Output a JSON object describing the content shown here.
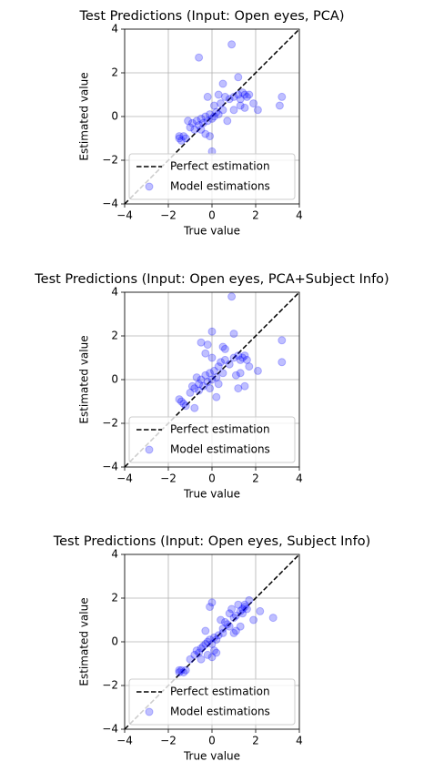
{
  "chart_data": [
    {
      "type": "scatter",
      "title": "Test Predictions (Input: Open eyes, PCA)",
      "xlabel": "True value",
      "ylabel": "Estimated value",
      "xlim": [
        -4,
        4
      ],
      "ylim": [
        -4,
        4
      ],
      "xticks": [
        {
          "value": -4,
          "label": "−4"
        },
        {
          "value": -2,
          "label": "−2"
        },
        0,
        2,
        4
      ],
      "yticks": [
        {
          "value": -4,
          "label": "−4"
        },
        {
          "value": -2,
          "label": "−2"
        },
        0,
        2,
        4
      ],
      "grid": true,
      "legend": "lower left",
      "series": [
        {
          "name": "Perfect estimation",
          "type": "line",
          "color": "#000000",
          "x": [
            -4,
            4
          ],
          "y": [
            -4,
            4
          ]
        },
        {
          "name": "Model estimations",
          "type": "scatter",
          "color": "#0000ff",
          "alpha": 0.25,
          "x": [
            -1.5,
            -1.4,
            -1.3,
            -1.2,
            -1.5,
            -1.0,
            -0.9,
            -0.8,
            -0.7,
            -0.6,
            -0.5,
            -0.4,
            -0.3,
            -0.2,
            -0.1,
            0,
            0.1,
            0.2,
            0.3,
            -0.3,
            -0.1,
            0.1,
            0.4,
            0.5,
            0.6,
            0.8,
            1.0,
            1.2,
            1.3,
            1.4,
            1.5,
            1.6,
            1.3,
            1.5,
            1.7,
            0.9,
            -0.6,
            3.2,
            3.1,
            2.1,
            0,
            1.2,
            0.5,
            -0.2,
            0.7,
            1.0,
            -1.1,
            0.3,
            -0.5,
            1.9
          ],
          "y": [
            -1.0,
            -1.1,
            -0.9,
            -1.0,
            -0.9,
            -0.5,
            -0.3,
            -0.6,
            -0.2,
            -0.4,
            -0.1,
            -0.3,
            0,
            -0.2,
            0.1,
            -0.1,
            0,
            0.2,
            0.1,
            -0.8,
            -0.9,
            0.5,
            0.6,
            0.3,
            0.9,
            0.8,
            0.9,
            1.0,
            0.8,
            1.1,
            1.0,
            0.9,
            0.5,
            0.4,
            1.0,
            3.3,
            2.7,
            0.9,
            0.5,
            0.3,
            -1.6,
            1.8,
            1.5,
            0.9,
            -0.2,
            0.3,
            -0.2,
            1.0,
            -0.6,
            0.6
          ]
        }
      ]
    },
    {
      "type": "scatter",
      "title": "Test Predictions (Input: Open eyes, PCA+Subject Info)",
      "xlabel": "True value",
      "ylabel": "Estimated value",
      "xlim": [
        -4,
        4
      ],
      "ylim": [
        -4,
        4
      ],
      "xticks": [
        {
          "value": -4,
          "label": "−4"
        },
        {
          "value": -2,
          "label": "−2"
        },
        0,
        2,
        4
      ],
      "yticks": [
        {
          "value": -4,
          "label": "−4"
        },
        {
          "value": -2,
          "label": "−2"
        },
        0,
        2,
        4
      ],
      "grid": true,
      "legend": "lower left",
      "series": [
        {
          "name": "Perfect estimation",
          "type": "line",
          "color": "#000000",
          "x": [
            -4,
            4
          ],
          "y": [
            -4,
            4
          ]
        },
        {
          "name": "Model estimations",
          "type": "scatter",
          "color": "#0000ff",
          "alpha": 0.25,
          "x": [
            -1.4,
            -1.3,
            -1.5,
            -1.2,
            -1.0,
            -0.9,
            -0.8,
            -0.7,
            -0.6,
            -0.5,
            -0.4,
            -0.3,
            -0.2,
            -0.1,
            0,
            0.1,
            0.2,
            0.3,
            -0.3,
            0,
            0.4,
            0.5,
            0.6,
            0.8,
            1.0,
            1.2,
            1.3,
            1.4,
            1.5,
            1.6,
            1.3,
            1.5,
            0.9,
            0,
            -0.5,
            1.0,
            3.2,
            3.2,
            2.1,
            -0.2,
            0.6,
            1.2,
            0.2,
            -0.8,
            1.7,
            0.5,
            -0.1,
            1.1,
            0.3,
            -0.6
          ],
          "y": [
            -1.0,
            -1.1,
            -0.9,
            -1.2,
            -0.6,
            -0.3,
            -0.4,
            0.1,
            -0.2,
            0,
            -0.3,
            0.2,
            -0.1,
            0.3,
            0,
            0.4,
            0.1,
            -0.2,
            1.2,
            1.0,
            0.8,
            0.3,
            0.9,
            0.7,
            1.0,
            1.1,
            0.9,
            1.0,
            1.1,
            0.9,
            0.3,
            -0.3,
            3.8,
            2.2,
            1.7,
            2.1,
            1.8,
            0.8,
            0.4,
            1.6,
            1.4,
            -0.4,
            -0.8,
            -1.3,
            0.6,
            1.5,
            -0.4,
            0.2,
            0.6,
            -0.5
          ]
        }
      ]
    },
    {
      "type": "scatter",
      "title": "Test Predictions (Input: Open eyes, Subject Info)",
      "xlabel": "True value",
      "ylabel": "Estimated value",
      "xlim": [
        -4,
        4
      ],
      "ylim": [
        -4,
        4
      ],
      "xticks": [
        {
          "value": -4,
          "label": "−4"
        },
        {
          "value": -2,
          "label": "−2"
        },
        0,
        2,
        4
      ],
      "yticks": [
        {
          "value": -4,
          "label": "−4"
        },
        {
          "value": -2,
          "label": "−2"
        },
        0,
        2,
        4
      ],
      "grid": true,
      "legend": "lower left",
      "series": [
        {
          "name": "Perfect estimation",
          "type": "line",
          "color": "#000000",
          "x": [
            -4,
            4
          ],
          "y": [
            -4,
            4
          ]
        },
        {
          "name": "Model estimations",
          "type": "scatter",
          "color": "#0000ff",
          "alpha": 0.25,
          "x": [
            -1.5,
            -1.4,
            -1.3,
            -1.2,
            -1.5,
            -1.0,
            -0.8,
            -0.7,
            -0.6,
            -0.5,
            -0.4,
            -0.3,
            -0.2,
            -0.1,
            0,
            0.1,
            0.2,
            -0.2,
            0,
            0.1,
            0.3,
            0.5,
            0.6,
            0.8,
            1.0,
            1.1,
            1.3,
            1.4,
            1.5,
            1.6,
            1.4,
            1.5,
            1.2,
            0.9,
            0,
            -0.1,
            2.8,
            2.2,
            1.9,
            1.0,
            0.4,
            0.7,
            -0.3,
            1.3,
            0.2,
            1.7,
            -0.5,
            0.8,
            1.1,
            0.5
          ],
          "y": [
            -1.4,
            -1.3,
            -1.4,
            -1.3,
            -1.3,
            -0.8,
            -0.6,
            -0.4,
            -0.5,
            -0.3,
            -0.2,
            -0.1,
            0,
            0.1,
            -0.1,
            0.2,
            0.1,
            -0.6,
            -0.7,
            -0.4,
            0.3,
            0.6,
            0.9,
            0.7,
            1.1,
            1.2,
            1.4,
            1.5,
            1.6,
            1.5,
            1.3,
            1.7,
            1.7,
            1.5,
            1.8,
            1.6,
            1.1,
            1.4,
            1.0,
            0.4,
            1.0,
            0.8,
            0.5,
            0.7,
            -0.5,
            1.9,
            -0.8,
            1.3,
            0.5,
            0.4
          ]
        }
      ]
    }
  ]
}
